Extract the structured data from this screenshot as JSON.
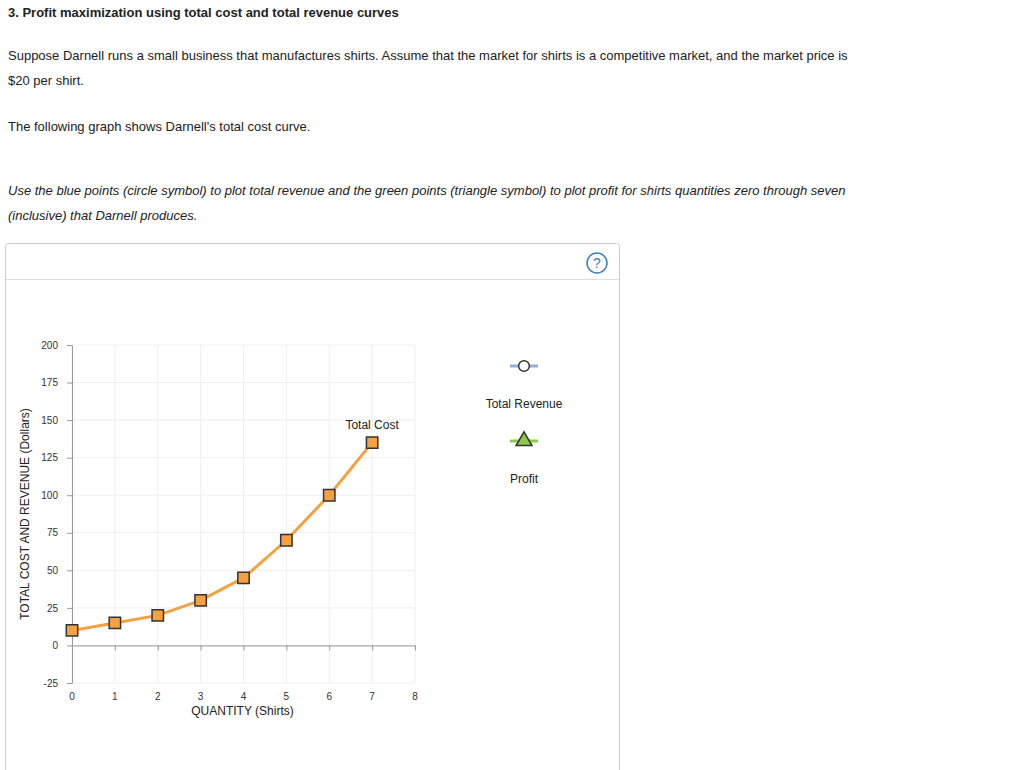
{
  "page": {
    "heading": "3. Profit maximization using total cost and total revenue curves",
    "intro": [
      "Suppose Darnell runs a small business that manufactures shirts. Assume that the market for shirts is a competitive market, and the market price is",
      "$20 per shirt."
    ],
    "graph_note": "The following graph shows Darnell's total cost curve.",
    "instructions": [
      "Use the blue points (circle symbol) to plot total revenue and the green points (triangle symbol) to plot profit for shirts quantities zero through seven",
      "(inclusive) that Darnell produces."
    ],
    "help": "?"
  },
  "chart_data": {
    "type": "line",
    "x": [
      0,
      1,
      2,
      3,
      4,
      5,
      6,
      7
    ],
    "series": [
      {
        "name": "Total Cost",
        "color": "#f5a142",
        "marker": "square",
        "values": [
          10,
          15,
          20,
          30,
          45,
          70,
          100,
          135
        ]
      },
      {
        "name": "Total Revenue",
        "color": "#8fb0dc",
        "marker": "circle",
        "values": [
          null,
          null,
          null,
          null,
          null,
          null,
          null,
          null
        ]
      },
      {
        "name": "Profit",
        "color": "#8cc84b",
        "marker": "triangle",
        "values": [
          null,
          null,
          null,
          null,
          null,
          null,
          null,
          null
        ]
      }
    ],
    "x_label": "QUANTITY (Shirts)",
    "y_label": "TOTAL COST AND REVENUE (Dollars)",
    "xlim": [
      0,
      8
    ],
    "xticks": [
      0,
      1,
      2,
      3,
      4,
      5,
      6,
      7,
      8
    ],
    "ylim": [
      -25,
      200
    ],
    "yticks": [
      -25,
      0,
      25,
      50,
      75,
      100,
      125,
      150,
      175,
      200
    ],
    "grid": true
  }
}
